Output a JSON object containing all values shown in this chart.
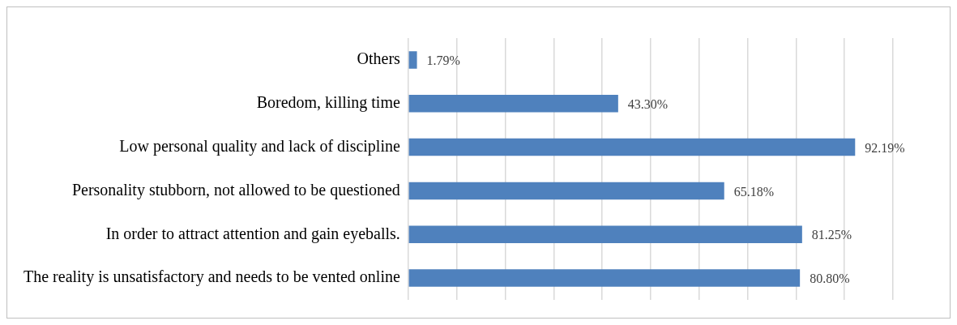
{
  "chart_data": {
    "type": "bar",
    "orientation": "horizontal",
    "categories": [
      "Others",
      "Boredom, killing time",
      "Low personal quality and lack of discipline",
      "Personality stubborn, not allowed to be questioned",
      "In order to attract attention and gain eyeballs.",
      "The reality is unsatisfactory and needs to be vented online"
    ],
    "values": [
      1.79,
      43.3,
      92.19,
      65.18,
      81.25,
      80.8
    ],
    "value_labels": [
      "1.79%",
      "43.30%",
      "92.19%",
      "65.18%",
      "81.25%",
      "80.80%"
    ],
    "color": "#4f81bd",
    "xlim": [
      0,
      100
    ],
    "xticks": [
      {
        "value": 0,
        "label": null
      },
      {
        "value": 10,
        "label": null
      },
      {
        "value": 20,
        "label": null
      },
      {
        "value": 30,
        "label": null
      },
      {
        "value": 40,
        "label": null
      },
      {
        "value": 50,
        "label": null
      },
      {
        "value": 60,
        "label": null
      },
      {
        "value": 70,
        "label": null
      },
      {
        "value": 80,
        "label": null
      },
      {
        "value": 90,
        "label": null
      },
      {
        "value": 100,
        "label": null
      }
    ],
    "tick_labels": "y",
    "grid": "x",
    "legend": false
  }
}
